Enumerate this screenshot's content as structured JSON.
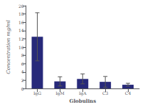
{
  "chart_data": {
    "type": "bar",
    "categories": [
      "IgG",
      "IgM",
      "IgA",
      "C3",
      "C4"
    ],
    "values": [
      12.5,
      1.7,
      2.3,
      1.6,
      0.9
    ],
    "errors": [
      5.8,
      1.1,
      1.2,
      1.3,
      0.35
    ],
    "color": "#27297a",
    "xlabel": "Globulins",
    "ylabel": "Concentration mg/ml",
    "ylim": [
      0,
      20
    ],
    "yticks": [
      0,
      2,
      4,
      6,
      8,
      10,
      12,
      14,
      16,
      18,
      20
    ],
    "grid": false
  }
}
